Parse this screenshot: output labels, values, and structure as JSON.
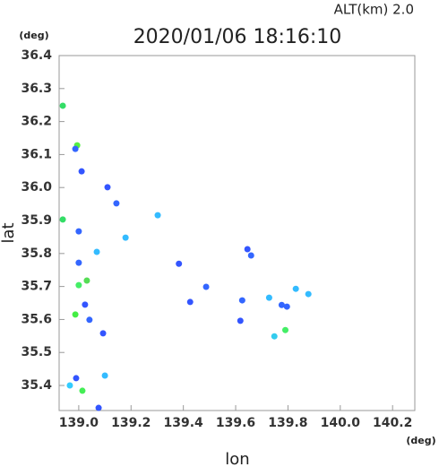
{
  "chart_data": {
    "type": "scatter",
    "title": "2020/01/06 18:16:10",
    "subtitle": "ALT(km) 2.0",
    "x_label": "lon",
    "y_label": "lat",
    "x_unit": "(deg)",
    "y_unit": "(deg)",
    "xlim": [
      138.925,
      140.285
    ],
    "ylim": [
      35.324,
      36.4
    ],
    "xticks": [
      {
        "value": 139,
        "label": "139.0"
      },
      139.2,
      139.4,
      139.6,
      139.8,
      {
        "value": 140,
        "label": "140.0"
      },
      140.2
    ],
    "yticks": [
      35.4,
      35.5,
      35.6,
      35.7,
      35.8,
      35.9,
      {
        "value": 36,
        "label": "36.0"
      },
      36.1,
      36.2,
      36.3,
      36.4
    ],
    "x": [
      138.939,
      138.994,
      138.987,
      139.011,
      139.11,
      139.144,
      138.939,
      139.0,
      139.302,
      139.179,
      139.0,
      139.069,
      139.0,
      139.031,
      139.024,
      138.987,
      139.041,
      139.093,
      139.383,
      139.426,
      139.487,
      139.645,
      139.659,
      139.618,
      139.625,
      139.728,
      139.776,
      139.83,
      139.878,
      139.796,
      139.79,
      139.748,
      139.1,
      138.99,
      138.966,
      139.014,
      139.076
    ],
    "y": [
      36.248,
      36.128,
      36.117,
      36.049,
      36.001,
      35.952,
      35.903,
      35.867,
      35.916,
      35.848,
      35.772,
      35.805,
      35.704,
      35.718,
      35.645,
      35.615,
      35.599,
      35.558,
      35.769,
      35.653,
      35.699,
      35.813,
      35.794,
      35.596,
      35.658,
      35.666,
      35.644,
      35.693,
      35.677,
      35.639,
      35.568,
      35.549,
      35.43,
      35.422,
      35.4,
      35.384,
      35.332
    ],
    "colors": [
      "#33dd66",
      "#55ee44",
      "#3366ff",
      "#3355ff",
      "#3355ff",
      "#3366ff",
      "#33dd66",
      "#3366ff",
      "#33bbff",
      "#33bbff",
      "#3366ff",
      "#33bbff",
      "#44ee66",
      "#55dd55",
      "#3355ff",
      "#44ee44",
      "#3366ff",
      "#3355ff",
      "#3355ff",
      "#3355ff",
      "#3366ff",
      "#3355ff",
      "#3366ff",
      "#3355ff",
      "#3366ff",
      "#33bbff",
      "#3366ff",
      "#33bbff",
      "#33bbff",
      "#3366ff",
      "#44ee66",
      "#33ccee",
      "#33bbff",
      "#3355ff",
      "#33ccff",
      "#44ee55",
      "#3355ff"
    ]
  }
}
